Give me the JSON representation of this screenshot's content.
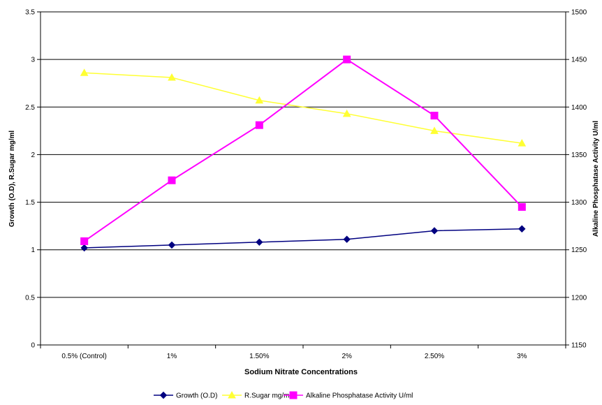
{
  "chart_data": {
    "type": "line",
    "categories": [
      "0.5% (Control)",
      "1%",
      "1.50%",
      "2%",
      "2.50%",
      "3%"
    ],
    "xlabel": "Sodium Nitrate Concentrations",
    "ylabel_left": "Growth (O.D), R.Sugar mg/ml",
    "ylabel_right": "Alkaline Phosphatase Activity U/ml",
    "y_left": {
      "min": 0,
      "max": 3.5,
      "ticks": [
        0,
        0.5,
        1,
        1.5,
        2,
        2.5,
        3,
        3.5
      ],
      "tick_labels": [
        "0",
        "0.5",
        "1",
        "1.5",
        "2",
        "2.5",
        "3",
        "3.5"
      ]
    },
    "y_right": {
      "min": 1150,
      "max": 1500,
      "ticks": [
        1150,
        1200,
        1250,
        1300,
        1350,
        1400,
        1450,
        1500
      ],
      "tick_labels": [
        "1150",
        "1200",
        "1250",
        "1300",
        "1350",
        "1400",
        "1450",
        "1500"
      ]
    },
    "grid": "horizontal",
    "legend_position": "bottom",
    "series": [
      {
        "name": "Growth (O.D)",
        "axis": "left",
        "color": "#000080",
        "marker": "diamond",
        "values": [
          1.02,
          1.05,
          1.08,
          1.11,
          1.2,
          1.22
        ]
      },
      {
        "name": "R.Sugar mg/ml",
        "axis": "left",
        "color": "#FFFF33",
        "marker": "triangle",
        "values": [
          2.86,
          2.81,
          2.57,
          2.43,
          2.25,
          2.12
        ]
      },
      {
        "name": "Alkaline Phosphatase Activity U/ml",
        "axis": "right",
        "color": "#FF00FF",
        "marker": "square",
        "values": [
          1259,
          1323,
          1381,
          1450,
          1391,
          1295
        ]
      }
    ]
  }
}
